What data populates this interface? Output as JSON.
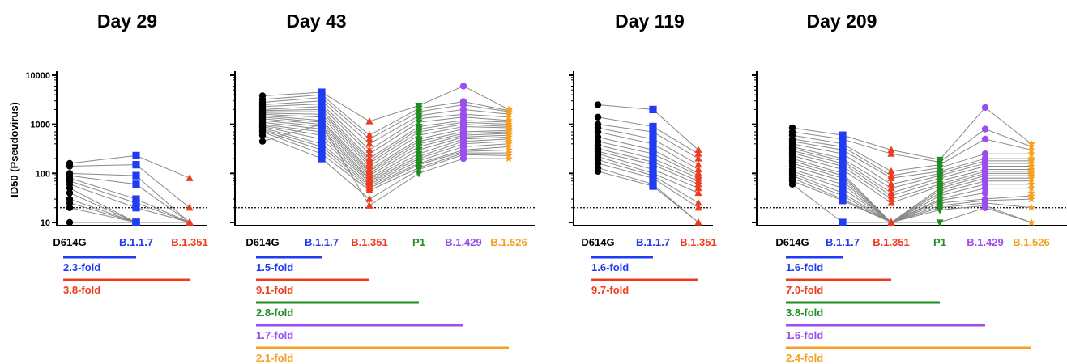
{
  "figure": {
    "ylabel": "ID50 (Pseudovirus)",
    "y_ticks": [
      "10",
      "100",
      "1000",
      "10000"
    ],
    "colors": {
      "D614G": "#000000",
      "B.1.1.7": "#1f3cf2",
      "B.1.351": "#ef3b1e",
      "P1": "#1e8c1e",
      "B.1.429": "#9b4df0",
      "B.1.526": "#f5a020",
      "line": "#888888"
    },
    "markers": {
      "D614G": "circle",
      "B.1.1.7": "square",
      "B.1.351": "triangle-up",
      "P1": "triangle-down",
      "B.1.429": "circle",
      "B.1.526": "star"
    }
  },
  "chart_data": [
    {
      "type": "scatter",
      "title": "Day 29",
      "categories": [
        "D614G",
        "B.1.1.7",
        "B.1.351"
      ],
      "yscale": "log",
      "ylim": [
        9,
        10000
      ],
      "threshold": 20,
      "values": [
        [
          160,
          140,
          100,
          90,
          80,
          70,
          60,
          50,
          40,
          30,
          25,
          20,
          10
        ],
        [
          230,
          150,
          90,
          60,
          30,
          25,
          20,
          10,
          10,
          10,
          10,
          10,
          10
        ],
        [
          80,
          20,
          10,
          10,
          10,
          10,
          10,
          10,
          10,
          10,
          10,
          10,
          10
        ]
      ],
      "fold_changes": [
        {
          "label": "2.3-fold",
          "variant": "B.1.1.7"
        },
        {
          "label": "3.8-fold",
          "variant": "B.1.351"
        }
      ]
    },
    {
      "type": "scatter",
      "title": "Day 43",
      "categories": [
        "D614G",
        "B.1.1.7",
        "B.1.351",
        "P1",
        "B.1.429",
        "B.1.526"
      ],
      "yscale": "log",
      "ylim": [
        9,
        10000
      ],
      "threshold": 20,
      "values": [
        [
          3800,
          3200,
          2800,
          2500,
          2300,
          2000,
          1900,
          1800,
          1700,
          1600,
          1500,
          1400,
          1300,
          1200,
          1100,
          1000,
          950,
          900,
          850,
          800,
          750,
          700,
          600,
          450
        ],
        [
          4500,
          4000,
          3500,
          3000,
          2600,
          2300,
          2000,
          1800,
          1600,
          1400,
          1200,
          1100,
          1000,
          900,
          800,
          700,
          600,
          500,
          400,
          350,
          300,
          250,
          200,
          1000
        ],
        [
          1150,
          600,
          500,
          400,
          300,
          250,
          200,
          180,
          160,
          140,
          120,
          110,
          100,
          90,
          80,
          75,
          70,
          65,
          60,
          55,
          50,
          45,
          30,
          22
        ],
        [
          2400,
          2100,
          1800,
          1500,
          1300,
          1100,
          900,
          800,
          700,
          600,
          500,
          450,
          400,
          350,
          300,
          250,
          220,
          200,
          180,
          160,
          150,
          130,
          120,
          100
        ],
        [
          6000,
          2900,
          2500,
          2000,
          1600,
          1400,
          1200,
          1100,
          1000,
          900,
          800,
          700,
          650,
          600,
          550,
          500,
          450,
          400,
          350,
          300,
          280,
          260,
          240,
          200
        ],
        [
          2000,
          1900,
          1800,
          1600,
          1400,
          1200,
          1100,
          1000,
          900,
          850,
          800,
          750,
          700,
          650,
          600,
          550,
          500,
          450,
          400,
          350,
          300,
          260,
          230,
          200
        ]
      ],
      "fold_changes": [
        {
          "label": "1.5-fold",
          "variant": "B.1.1.7"
        },
        {
          "label": "9.1-fold",
          "variant": "B.1.351"
        },
        {
          "label": "2.8-fold",
          "variant": "P1"
        },
        {
          "label": "1.7-fold",
          "variant": "B.1.429"
        },
        {
          "label": "2.1-fold",
          "variant": "B.1.526"
        }
      ]
    },
    {
      "type": "scatter",
      "title": "Day 119",
      "categories": [
        "D614G",
        "B.1.1.7",
        "B.1.351"
      ],
      "yscale": "log",
      "ylim": [
        9,
        10000
      ],
      "threshold": 20,
      "values": [
        [
          2500,
          1400,
          1000,
          850,
          700,
          550,
          450,
          380,
          320,
          280,
          250,
          220,
          190,
          160,
          130,
          110
        ],
        [
          2000,
          900,
          700,
          500,
          400,
          300,
          250,
          200,
          170,
          150,
          120,
          100,
          90,
          80,
          60,
          55
        ],
        [
          300,
          250,
          200,
          150,
          120,
          100,
          90,
          80,
          70,
          60,
          50,
          40,
          25,
          20,
          10,
          10
        ]
      ],
      "fold_changes": [
        {
          "label": "1.6-fold",
          "variant": "B.1.1.7"
        },
        {
          "label": "9.7-fold",
          "variant": "B.1.351"
        }
      ]
    },
    {
      "type": "scatter",
      "title": "Day 209",
      "categories": [
        "D614G",
        "B.1.1.7",
        "B.1.351",
        "P1",
        "B.1.429",
        "B.1.526"
      ],
      "yscale": "log",
      "ylim": [
        9,
        10000
      ],
      "threshold": 20,
      "values": [
        [
          850,
          700,
          600,
          500,
          450,
          400,
          350,
          320,
          290,
          260,
          230,
          200,
          180,
          160,
          140,
          120,
          110,
          100,
          90,
          80,
          70,
          60
        ],
        [
          600,
          500,
          400,
          350,
          300,
          250,
          200,
          180,
          160,
          140,
          120,
          100,
          90,
          80,
          70,
          60,
          50,
          40,
          35,
          30,
          28,
          10
        ],
        [
          300,
          250,
          110,
          90,
          80,
          60,
          50,
          40,
          35,
          30,
          25,
          10,
          10,
          10,
          10,
          10,
          10,
          10,
          10,
          10,
          10,
          10
        ],
        [
          190,
          170,
          150,
          130,
          110,
          100,
          90,
          80,
          70,
          60,
          55,
          50,
          45,
          40,
          35,
          30,
          28,
          25,
          22,
          20,
          18,
          10
        ],
        [
          2200,
          800,
          500,
          250,
          200,
          180,
          160,
          140,
          120,
          110,
          100,
          90,
          80,
          70,
          60,
          50,
          40,
          30,
          28,
          25,
          22,
          20
        ],
        [
          400,
          350,
          300,
          250,
          200,
          180,
          160,
          140,
          120,
          110,
          100,
          90,
          80,
          70,
          60,
          50,
          40,
          35,
          30,
          20,
          10,
          10
        ]
      ],
      "fold_changes": [
        {
          "label": "1.6-fold",
          "variant": "B.1.1.7"
        },
        {
          "label": "7.0-fold",
          "variant": "B.1.351"
        },
        {
          "label": "3.8-fold",
          "variant": "P1"
        },
        {
          "label": "1.6-fold",
          "variant": "B.1.429"
        },
        {
          "label": "2.4-fold",
          "variant": "B.1.526"
        }
      ]
    }
  ]
}
